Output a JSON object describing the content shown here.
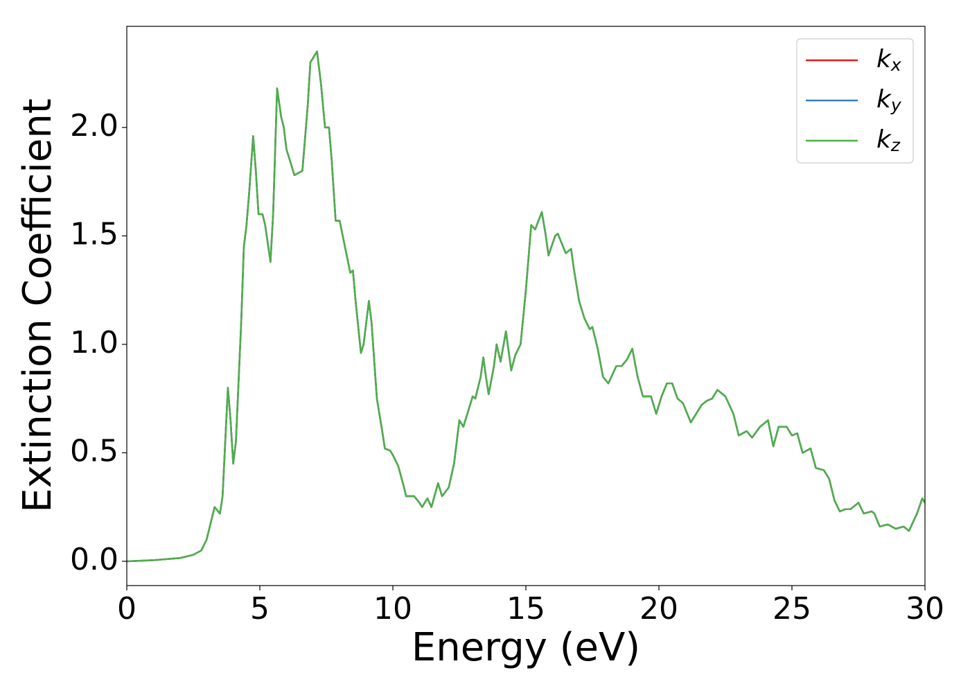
{
  "chart_data": {
    "type": "line",
    "xlabel": "Energy (eV)",
    "ylabel": "Extinction Coefficient",
    "xlim": [
      0,
      30
    ],
    "ylim": [
      -0.112,
      2.466
    ],
    "xticks": [
      0,
      5,
      10,
      15,
      20,
      25,
      30
    ],
    "yticks": [
      {
        "value": 0,
        "label": "0.0"
      },
      0.5,
      {
        "value": 1,
        "label": "1.0"
      },
      1.5,
      {
        "value": 2,
        "label": "2.0"
      }
    ],
    "legend": "upper right",
    "x": [
      0,
      1,
      2,
      2.5,
      2.8,
      3.0,
      3.2,
      3.3,
      3.5,
      3.6,
      3.8,
      3.9,
      4.0,
      4.1,
      4.3,
      4.4,
      4.5,
      4.6,
      4.75,
      4.85,
      4.95,
      5.1,
      5.2,
      5.4,
      5.5,
      5.65,
      5.8,
      5.9,
      6.0,
      6.3,
      6.6,
      6.8,
      6.9,
      7.15,
      7.3,
      7.45,
      7.6,
      7.7,
      7.85,
      8.0,
      8.2,
      8.4,
      8.5,
      8.6,
      8.8,
      8.9,
      9.1,
      9.2,
      9.4,
      9.6,
      9.7,
      9.9,
      10.0,
      10.2,
      10.4,
      10.5,
      10.8,
      11.0,
      11.1,
      11.3,
      11.45,
      11.7,
      11.85,
      12.1,
      12.3,
      12.5,
      12.65,
      12.8,
      13.0,
      13.1,
      13.3,
      13.4,
      13.5,
      13.6,
      13.8,
      13.9,
      14.05,
      14.25,
      14.45,
      14.6,
      14.8,
      15.0,
      15.2,
      15.35,
      15.6,
      15.75,
      15.85,
      16.1,
      16.2,
      16.5,
      16.7,
      16.8,
      17.0,
      17.2,
      17.4,
      17.5,
      17.7,
      17.9,
      18.1,
      18.4,
      18.6,
      18.8,
      19.0,
      19.2,
      19.4,
      19.7,
      19.9,
      20.1,
      20.3,
      20.5,
      20.7,
      20.9,
      21.2,
      21.4,
      21.6,
      21.8,
      22.0,
      22.2,
      22.5,
      22.8,
      23.0,
      23.3,
      23.5,
      23.8,
      24.1,
      24.3,
      24.5,
      24.8,
      25.0,
      25.2,
      25.4,
      25.7,
      25.9,
      26.2,
      26.4,
      26.6,
      26.8,
      27.0,
      27.2,
      27.5,
      27.7,
      28.0,
      28.1,
      28.3,
      28.6,
      28.9,
      29.2,
      29.4,
      29.7,
      29.9,
      30.0
    ],
    "series": [
      {
        "name": "kx",
        "color": "#e41a1c",
        "values": [
          0,
          0.005,
          0.015,
          0.03,
          0.05,
          0.1,
          0.2,
          0.25,
          0.22,
          0.3,
          0.8,
          0.65,
          0.45,
          0.55,
          1.1,
          1.45,
          1.55,
          1.7,
          1.96,
          1.8,
          1.6,
          1.6,
          1.55,
          1.38,
          1.6,
          2.18,
          2.05,
          2.0,
          1.9,
          1.78,
          1.8,
          2.1,
          2.3,
          2.35,
          2.2,
          2.0,
          2.0,
          1.85,
          1.57,
          1.57,
          1.45,
          1.33,
          1.34,
          1.2,
          0.96,
          1.0,
          1.2,
          1.1,
          0.75,
          0.6,
          0.52,
          0.51,
          0.49,
          0.44,
          0.35,
          0.3,
          0.3,
          0.27,
          0.25,
          0.29,
          0.25,
          0.36,
          0.3,
          0.34,
          0.45,
          0.65,
          0.62,
          0.68,
          0.76,
          0.75,
          0.85,
          0.94,
          0.85,
          0.77,
          0.9,
          1.0,
          0.92,
          1.06,
          0.88,
          0.95,
          1.0,
          1.25,
          1.55,
          1.53,
          1.61,
          1.5,
          1.41,
          1.5,
          1.51,
          1.42,
          1.44,
          1.35,
          1.2,
          1.12,
          1.07,
          1.08,
          0.98,
          0.85,
          0.82,
          0.9,
          0.9,
          0.93,
          0.98,
          0.85,
          0.76,
          0.76,
          0.68,
          0.76,
          0.82,
          0.82,
          0.75,
          0.73,
          0.64,
          0.68,
          0.72,
          0.74,
          0.75,
          0.79,
          0.76,
          0.68,
          0.58,
          0.6,
          0.57,
          0.62,
          0.65,
          0.53,
          0.62,
          0.62,
          0.58,
          0.59,
          0.5,
          0.52,
          0.43,
          0.42,
          0.38,
          0.28,
          0.23,
          0.24,
          0.24,
          0.27,
          0.22,
          0.23,
          0.22,
          0.16,
          0.17,
          0.15,
          0.16,
          0.14,
          0.22,
          0.29,
          0.27
        ]
      },
      {
        "name": "ky",
        "color": "#377eb8",
        "values": [
          0,
          0.005,
          0.015,
          0.03,
          0.05,
          0.1,
          0.2,
          0.25,
          0.22,
          0.3,
          0.8,
          0.65,
          0.45,
          0.55,
          1.1,
          1.45,
          1.55,
          1.7,
          1.96,
          1.8,
          1.6,
          1.6,
          1.55,
          1.38,
          1.6,
          2.18,
          2.05,
          2.0,
          1.9,
          1.78,
          1.8,
          2.1,
          2.3,
          2.35,
          2.2,
          2.0,
          2.0,
          1.85,
          1.57,
          1.57,
          1.45,
          1.33,
          1.34,
          1.2,
          0.96,
          1.0,
          1.2,
          1.1,
          0.75,
          0.6,
          0.52,
          0.51,
          0.49,
          0.44,
          0.35,
          0.3,
          0.3,
          0.27,
          0.25,
          0.29,
          0.25,
          0.36,
          0.3,
          0.34,
          0.45,
          0.65,
          0.62,
          0.68,
          0.76,
          0.75,
          0.85,
          0.94,
          0.85,
          0.77,
          0.9,
          1.0,
          0.92,
          1.06,
          0.88,
          0.95,
          1.0,
          1.25,
          1.55,
          1.53,
          1.61,
          1.5,
          1.41,
          1.5,
          1.51,
          1.42,
          1.44,
          1.35,
          1.2,
          1.12,
          1.07,
          1.08,
          0.98,
          0.85,
          0.82,
          0.9,
          0.9,
          0.93,
          0.98,
          0.85,
          0.76,
          0.76,
          0.68,
          0.76,
          0.82,
          0.82,
          0.75,
          0.73,
          0.64,
          0.68,
          0.72,
          0.74,
          0.75,
          0.79,
          0.76,
          0.68,
          0.58,
          0.6,
          0.57,
          0.62,
          0.65,
          0.53,
          0.62,
          0.62,
          0.58,
          0.59,
          0.5,
          0.52,
          0.43,
          0.42,
          0.38,
          0.28,
          0.23,
          0.24,
          0.24,
          0.27,
          0.22,
          0.23,
          0.22,
          0.16,
          0.17,
          0.15,
          0.16,
          0.14,
          0.22,
          0.29,
          0.27
        ]
      },
      {
        "name": "kz",
        "color": "#4daf4a",
        "values": [
          0,
          0.005,
          0.015,
          0.03,
          0.05,
          0.1,
          0.2,
          0.25,
          0.22,
          0.3,
          0.8,
          0.65,
          0.45,
          0.55,
          1.1,
          1.45,
          1.55,
          1.7,
          1.96,
          1.8,
          1.6,
          1.6,
          1.55,
          1.38,
          1.6,
          2.18,
          2.05,
          2.0,
          1.9,
          1.78,
          1.8,
          2.1,
          2.3,
          2.35,
          2.2,
          2.0,
          2.0,
          1.85,
          1.57,
          1.57,
          1.45,
          1.33,
          1.34,
          1.2,
          0.96,
          1.0,
          1.2,
          1.1,
          0.75,
          0.6,
          0.52,
          0.51,
          0.49,
          0.44,
          0.35,
          0.3,
          0.3,
          0.27,
          0.25,
          0.29,
          0.25,
          0.36,
          0.3,
          0.34,
          0.45,
          0.65,
          0.62,
          0.68,
          0.76,
          0.75,
          0.85,
          0.94,
          0.85,
          0.77,
          0.9,
          1.0,
          0.92,
          1.06,
          0.88,
          0.95,
          1.0,
          1.25,
          1.55,
          1.53,
          1.61,
          1.5,
          1.41,
          1.5,
          1.51,
          1.42,
          1.44,
          1.35,
          1.2,
          1.12,
          1.07,
          1.08,
          0.98,
          0.85,
          0.82,
          0.9,
          0.9,
          0.93,
          0.98,
          0.85,
          0.76,
          0.76,
          0.68,
          0.76,
          0.82,
          0.82,
          0.75,
          0.73,
          0.64,
          0.68,
          0.72,
          0.74,
          0.75,
          0.79,
          0.76,
          0.68,
          0.58,
          0.6,
          0.57,
          0.62,
          0.65,
          0.53,
          0.62,
          0.62,
          0.58,
          0.59,
          0.5,
          0.52,
          0.43,
          0.42,
          0.38,
          0.28,
          0.23,
          0.24,
          0.24,
          0.27,
          0.22,
          0.23,
          0.22,
          0.16,
          0.17,
          0.15,
          0.16,
          0.14,
          0.22,
          0.29,
          0.27
        ]
      }
    ]
  }
}
